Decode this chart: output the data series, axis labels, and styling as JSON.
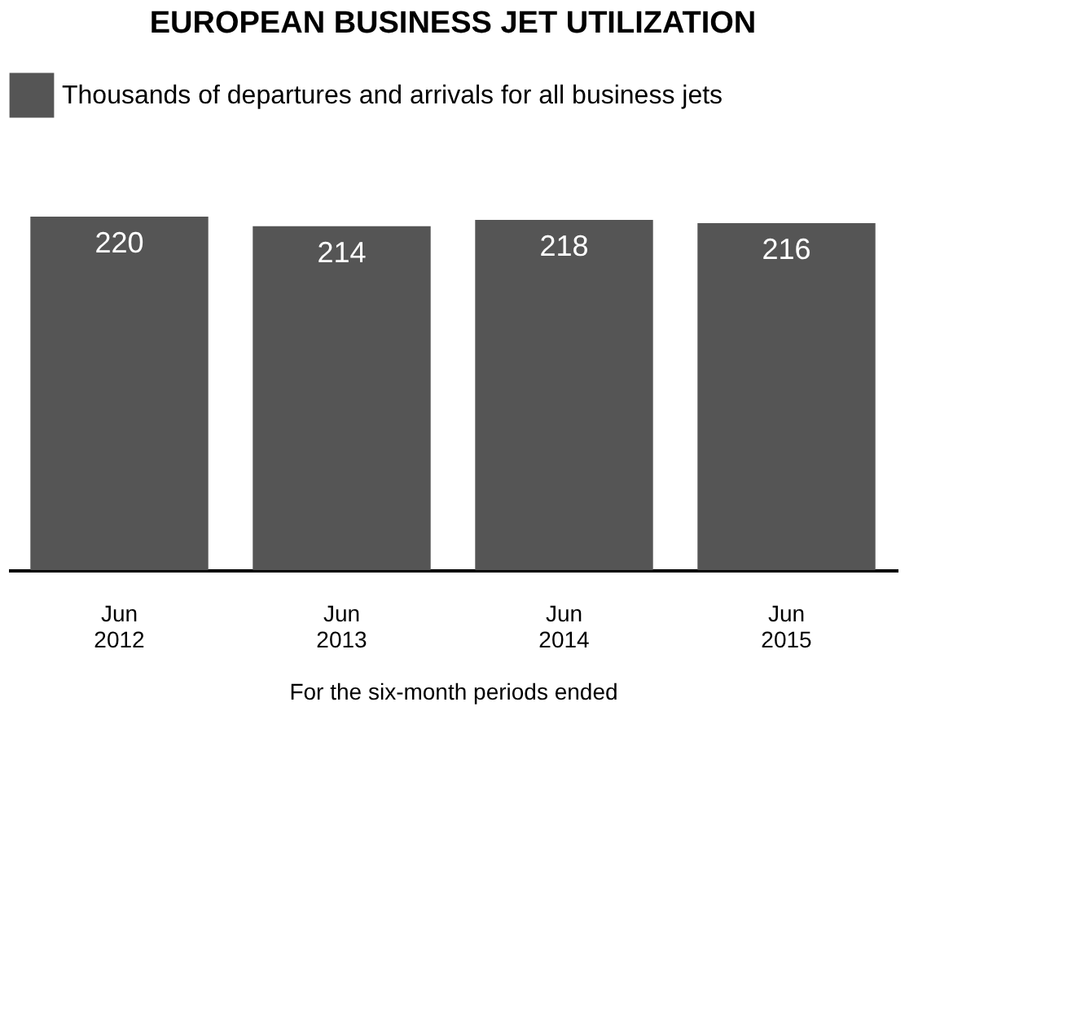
{
  "chart_data": {
    "type": "bar",
    "title": "EUROPEAN BUSINESS JET UTILIZATION",
    "xlabel": "For the six-month periods ended",
    "categories": [
      "Jun 2012",
      "Jun 2013",
      "Jun 2014",
      "Jun 2015"
    ],
    "series": [
      {
        "name": "Thousands of departures and arrivals for all business jets",
        "color": "#555555",
        "values": [
          220,
          214,
          218,
          216
        ]
      }
    ],
    "data_labels": true,
    "legend": "top",
    "grid": false
  }
}
